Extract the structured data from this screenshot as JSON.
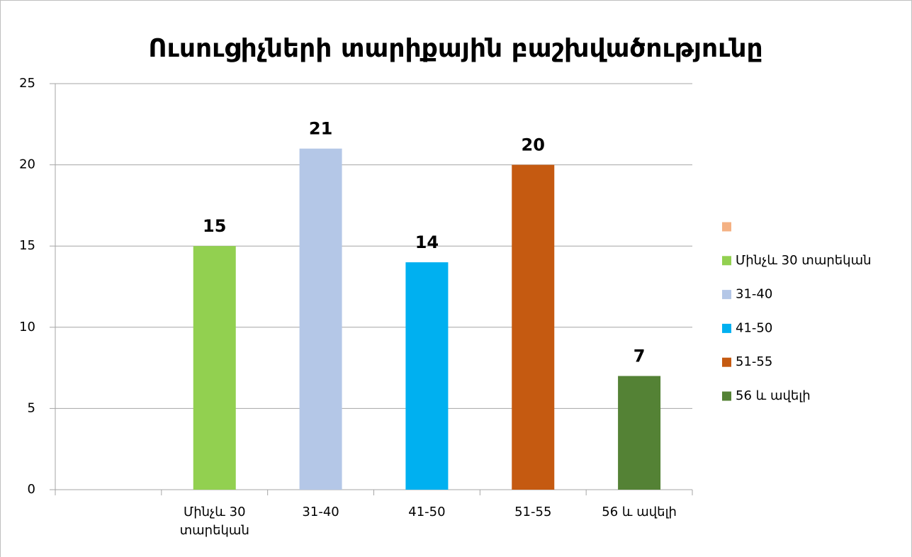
{
  "chart_data": {
    "type": "bar",
    "title": "Ուսուցիչների տարիքային բաշխվածությունը",
    "categories": [
      null,
      "Մինչև 30 տարեկան",
      "31-40",
      "41-50",
      "51-55",
      "56 և ավելի"
    ],
    "values": [
      null,
      15,
      21,
      14,
      20,
      7
    ],
    "colors": [
      "#f4b183",
      "#92d050",
      "#b4c7e7",
      "#00b0f0",
      "#c55a11",
      "#548235"
    ],
    "ylim": [
      0,
      25
    ],
    "yticks": [
      0,
      5,
      10,
      15,
      20,
      25
    ],
    "grid": true,
    "legend": "right"
  }
}
